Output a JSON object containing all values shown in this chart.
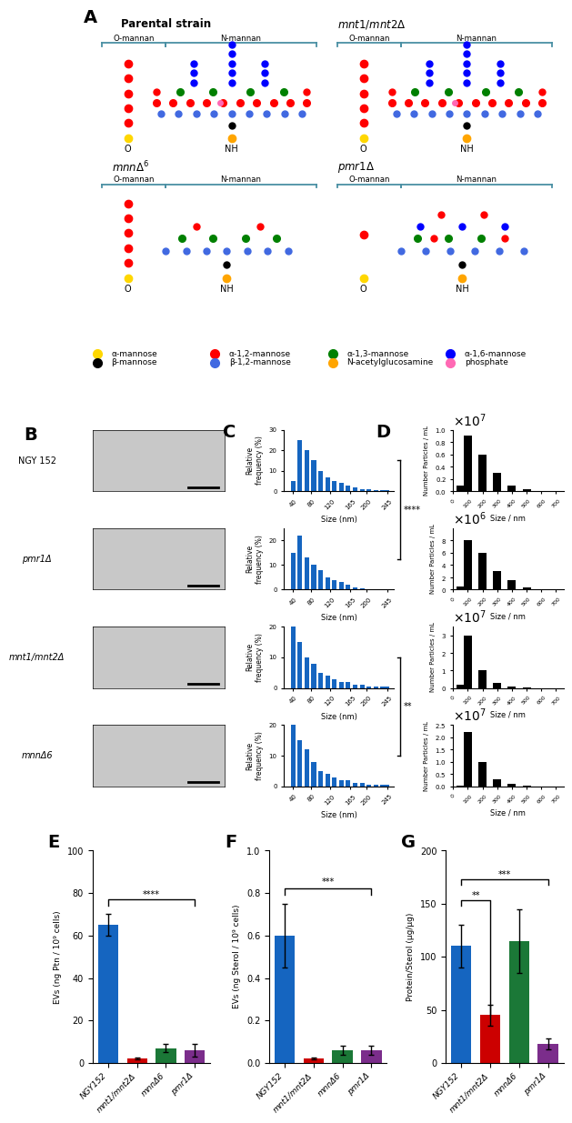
{
  "legend_items": [
    {
      "label": "α-mannose",
      "color": "#FFD700"
    },
    {
      "label": "α-1,2-mannose",
      "color": "#FF0000"
    },
    {
      "label": "α-1,3-mannose",
      "color": "#008000"
    },
    {
      "label": "α-1,6-mannose",
      "color": "#0000FF"
    },
    {
      "label": "β-mannose",
      "color": "#000000"
    },
    {
      "label": "β-1,2-mannose",
      "color": "#4169E1"
    },
    {
      "label": "N-acetylglucosamine",
      "color": "#FFA500"
    },
    {
      "label": "phosphate",
      "color": "#FF69B4"
    }
  ],
  "bar_E_values": [
    65,
    2,
    7,
    6
  ],
  "bar_E_colors": [
    "#1565C0",
    "#CC0000",
    "#1B7837",
    "#7B2D8B"
  ],
  "bar_E_errors": [
    5,
    0.5,
    2,
    3
  ],
  "bar_E_ylabel": "EVs (ng Ptn / 10⁹ cells)",
  "bar_E_ylim": [
    0,
    100
  ],
  "bar_E_yticks": [
    0,
    20,
    40,
    60,
    80,
    100
  ],
  "bar_F_values": [
    0.6,
    0.02,
    0.06,
    0.06
  ],
  "bar_F_colors": [
    "#1565C0",
    "#CC0000",
    "#1B7837",
    "#7B2D8B"
  ],
  "bar_F_errors": [
    0.15,
    0.005,
    0.02,
    0.02
  ],
  "bar_F_ylabel": "EVs (ng Sterol / 10⁹ cells)",
  "bar_F_ylim": [
    0,
    1.0
  ],
  "bar_F_yticks": [
    0,
    0.2,
    0.4,
    0.6,
    0.8,
    1.0
  ],
  "bar_G_values": [
    110,
    45,
    115,
    18
  ],
  "bar_G_colors": [
    "#1565C0",
    "#CC0000",
    "#1B7837",
    "#7B2D8B"
  ],
  "bar_G_errors": [
    20,
    10,
    30,
    5
  ],
  "bar_G_ylabel": "Protein/Sterol (μg/μg)",
  "bar_G_ylim": [
    0,
    200
  ],
  "bar_G_yticks": [
    0,
    50,
    100,
    150,
    200
  ],
  "xlabels_bar": [
    "NGY152",
    "mnt1/mnt2Δ",
    "mnnΔ6",
    "pmr1Δ"
  ],
  "C_NGY152_bins": [
    40,
    55,
    70,
    85,
    100,
    115,
    130,
    145,
    160,
    175,
    190,
    205,
    220,
    235,
    245
  ],
  "C_NGY152_freqs": [
    5,
    25,
    20,
    15,
    10,
    7,
    5,
    4,
    3,
    2,
    1,
    1,
    0.5,
    0.5,
    0.5
  ],
  "C_pmr1_bins": [
    40,
    55,
    70,
    85,
    100,
    115,
    130,
    145,
    160,
    175,
    190,
    205,
    220,
    235,
    245
  ],
  "C_pmr1_freqs": [
    15,
    22,
    13,
    10,
    8,
    5,
    4,
    3,
    2,
    1,
    0.5,
    0,
    0,
    0,
    0
  ],
  "C_mnt1mnt2_bins": [
    40,
    55,
    70,
    85,
    100,
    115,
    130,
    145,
    160,
    175,
    190,
    205,
    220,
    235,
    245
  ],
  "C_mnt1mnt2_freqs": [
    20,
    15,
    10,
    8,
    5,
    4,
    3,
    2,
    2,
    1,
    1,
    0.5,
    0.5,
    0.5,
    0.5
  ],
  "C_mnn_bins": [
    40,
    55,
    70,
    85,
    100,
    115,
    130,
    145,
    160,
    175,
    190,
    205,
    220,
    235,
    245
  ],
  "C_mnn_freqs": [
    20,
    15,
    12,
    8,
    5,
    4,
    3,
    2,
    2,
    1,
    1,
    0.5,
    0.5,
    0.5,
    0.5
  ],
  "C_ylims": [
    30,
    25,
    20,
    20
  ],
  "D_NGY152_bins": [
    50,
    100,
    200,
    300,
    400,
    500,
    600,
    700
  ],
  "D_NGY152_vals": [
    1000000,
    9000000,
    6000000,
    3000000,
    1000000,
    300000,
    50000,
    10000
  ],
  "D_pmr1_bins": [
    50,
    100,
    200,
    300,
    400,
    500,
    600,
    700
  ],
  "D_pmr1_vals": [
    500000,
    8000000,
    6000000,
    3000000,
    1500000,
    300000,
    100000,
    10000
  ],
  "D_mnt1mnt2_bins": [
    50,
    100,
    200,
    300,
    400,
    500,
    600,
    700
  ],
  "D_mnt1mnt2_vals": [
    2000000,
    30000000,
    10000000,
    3000000,
    1000000,
    200000,
    50000,
    10000
  ],
  "D_mnn_bins": [
    50,
    100,
    200,
    300,
    400,
    500,
    600,
    700
  ],
  "D_mnn_vals": [
    500000,
    22000000,
    10000000,
    3000000,
    1000000,
    200000,
    50000,
    10000
  ],
  "D_ylims": [
    10000000,
    10000000,
    35000000,
    25000000
  ],
  "strain_labels_BCD": [
    "NGY 152",
    "pmr1Δ",
    "mnt1/mnt2Δ",
    "mnnΔ6"
  ]
}
